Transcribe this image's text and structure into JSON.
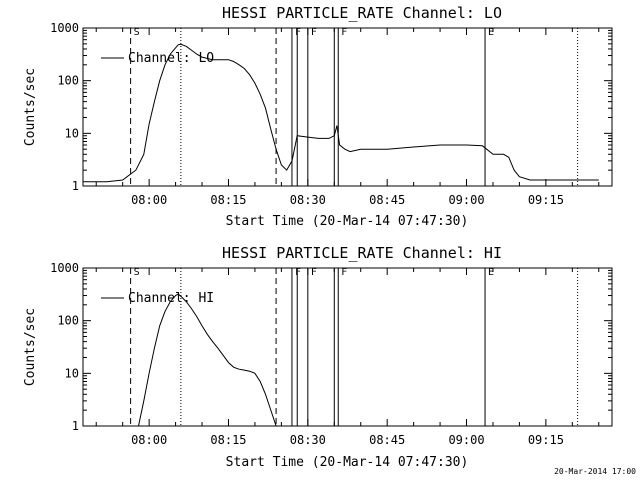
{
  "footer": {
    "timestamp": "20-Mar-2014 17:00"
  },
  "chart_data": [
    {
      "type": "line",
      "title": "HESSI PARTICLE_RATE Channel: LO",
      "xlabel": "Start Time (20-Mar-14 07:47:30)",
      "ylabel": "Counts/sec",
      "yscale": "log",
      "ylim": [
        1,
        1000
      ],
      "yticks": [
        1,
        10,
        100,
        1000
      ],
      "ytick_labels": [
        "1",
        "10",
        "100",
        "1000"
      ],
      "xlim": [
        "07:47:30",
        "09:27:30"
      ],
      "xticks": [
        "08:00",
        "08:15",
        "08:30",
        "08:45",
        "09:00",
        "09:15"
      ],
      "grid": false,
      "legend": {
        "position": "upper-left",
        "entries": [
          "Channel: LO"
        ]
      },
      "series": [
        {
          "name": "Channel: LO",
          "x": [
            "07:47:30",
            "07:52:00",
            "07:55:00",
            "07:57:30",
            "07:59:00",
            "08:00:00",
            "08:01:00",
            "08:02:00",
            "08:03:00",
            "08:04:00",
            "08:05:00",
            "08:05:30",
            "08:06:00",
            "08:07:00",
            "08:08:00",
            "08:09:00",
            "08:10:00",
            "08:12:00",
            "08:14:00",
            "08:15:00",
            "08:16:00",
            "08:17:00",
            "08:18:00",
            "08:19:00",
            "08:20:00",
            "08:21:00",
            "08:22:00",
            "08:23:00",
            "08:24:00",
            "08:25:00",
            "08:26:00",
            "08:27:00",
            "08:28:00",
            "08:30:00",
            "08:32:00",
            "08:34:00",
            "08:35:00",
            "08:35:30",
            "08:36:00",
            "08:37:00",
            "08:38:00",
            "08:40:00",
            "08:45:00",
            "08:50:00",
            "08:55:00",
            "09:00:00",
            "09:03:00",
            "09:05:00",
            "09:07:00",
            "09:08:00",
            "09:09:00",
            "09:10:00",
            "09:12:00",
            "09:15:00",
            "09:20:00",
            "09:25:00"
          ],
          "y": [
            1.2,
            1.2,
            1.3,
            2,
            4,
            15,
            40,
            100,
            200,
            320,
            420,
            480,
            490,
            450,
            380,
            320,
            280,
            250,
            250,
            250,
            230,
            200,
            170,
            130,
            90,
            55,
            30,
            12,
            5,
            2.5,
            2,
            3,
            9,
            8.5,
            8,
            8,
            9,
            14,
            6,
            5,
            4.5,
            5,
            5,
            5.5,
            6,
            6,
            5.8,
            4,
            4,
            3.5,
            2,
            1.5,
            1.3,
            1.3,
            1.3,
            1.3
          ]
        }
      ],
      "vertical_markers": [
        {
          "time": "07:56:30",
          "style": "dashed",
          "label": "S"
        },
        {
          "time": "08:06:00",
          "style": "dotted",
          "label": ""
        },
        {
          "time": "08:24:00",
          "style": "dashed",
          "label": ""
        },
        {
          "time": "08:27:00",
          "style": "solid",
          "label": "F"
        },
        {
          "time": "08:28:00",
          "style": "solid",
          "label": ""
        },
        {
          "time": "08:30:00",
          "style": "solid",
          "label": "F"
        },
        {
          "time": "08:35:00",
          "style": "solid",
          "label": ""
        },
        {
          "time": "08:35:45",
          "style": "solid",
          "label": "F"
        },
        {
          "time": "09:03:30",
          "style": "solid",
          "label": "E"
        },
        {
          "time": "09:21:00",
          "style": "dotted",
          "label": ""
        }
      ]
    },
    {
      "type": "line",
      "title": "HESSI PARTICLE_RATE Channel: HI",
      "xlabel": "Start Time (20-Mar-14 07:47:30)",
      "ylabel": "Counts/sec",
      "yscale": "log",
      "ylim": [
        1,
        1000
      ],
      "yticks": [
        1,
        10,
        100,
        1000
      ],
      "ytick_labels": [
        "1",
        "10",
        "100",
        "1000"
      ],
      "xlim": [
        "07:47:30",
        "09:27:30"
      ],
      "xticks": [
        "08:00",
        "08:15",
        "08:30",
        "08:45",
        "09:00",
        "09:15"
      ],
      "grid": false,
      "legend": {
        "position": "upper-left",
        "entries": [
          "Channel: HI"
        ]
      },
      "series": [
        {
          "name": "Channel: HI",
          "x": [
            "07:58:00",
            "07:59:00",
            "08:00:00",
            "08:01:00",
            "08:02:00",
            "08:03:00",
            "08:04:00",
            "08:05:00",
            "08:05:30",
            "08:06:00",
            "08:07:00",
            "08:08:00",
            "08:09:00",
            "08:10:00",
            "08:11:00",
            "08:12:00",
            "08:13:00",
            "08:14:00",
            "08:15:00",
            "08:16:00",
            "08:17:00",
            "08:18:00",
            "08:19:00",
            "08:20:00",
            "08:21:00",
            "08:22:00",
            "08:23:00",
            "08:24:00"
          ],
          "y": [
            1,
            3,
            10,
            30,
            80,
            150,
            230,
            300,
            320,
            290,
            230,
            170,
            120,
            80,
            55,
            40,
            30,
            22,
            16,
            13,
            12,
            11.5,
            11,
            10,
            7,
            4,
            2,
            1
          ]
        }
      ],
      "vertical_markers": [
        {
          "time": "07:56:30",
          "style": "dashed",
          "label": "S"
        },
        {
          "time": "08:06:00",
          "style": "dotted",
          "label": ""
        },
        {
          "time": "08:24:00",
          "style": "dashed",
          "label": ""
        },
        {
          "time": "08:27:00",
          "style": "solid",
          "label": "F"
        },
        {
          "time": "08:28:00",
          "style": "solid",
          "label": ""
        },
        {
          "time": "08:30:00",
          "style": "solid",
          "label": "F"
        },
        {
          "time": "08:35:00",
          "style": "solid",
          "label": ""
        },
        {
          "time": "08:35:45",
          "style": "solid",
          "label": "F"
        },
        {
          "time": "09:03:30",
          "style": "solid",
          "label": "E"
        },
        {
          "time": "09:21:00",
          "style": "dotted",
          "label": ""
        }
      ]
    }
  ]
}
